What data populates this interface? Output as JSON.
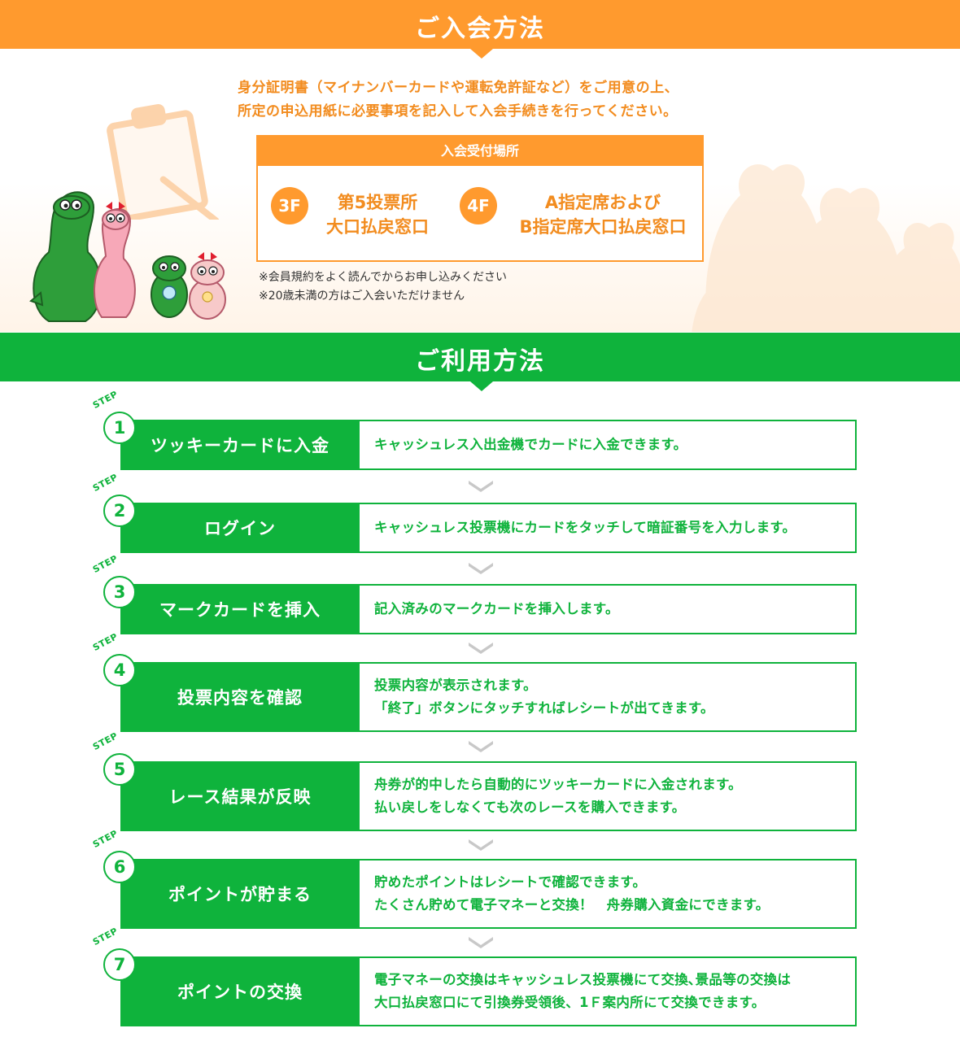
{
  "join": {
    "title": "ご入会方法",
    "intro_line1": "身分証明書（マイナンバーカードや運転免許証など）をご用意の上、",
    "intro_line2": "所定の申込用紙に必要事項を記入して入会手続きを行ってください。",
    "reception_title": "入会受付場所",
    "floors": [
      {
        "badge": "3F",
        "line1": "第5投票所",
        "line2": "大口払戻窓口"
      },
      {
        "badge": "4F",
        "line1": "A指定席および",
        "line2": "B指定席大口払戻窓口"
      }
    ],
    "notes": [
      "※会員規約をよく読んでからお申し込みください",
      "※20歳未満の方はご入会いただけません"
    ]
  },
  "usage": {
    "title": "ご利用方法",
    "step_word": "STEP",
    "steps": [
      {
        "num": "1",
        "label": "ツッキーカードに入金",
        "desc1": "キャッシュレス入出金機でカードに入金できます。",
        "desc2": ""
      },
      {
        "num": "2",
        "label": "ログイン",
        "desc1": "キャッシュレス投票機にカードをタッチして暗証番号を入力します。",
        "desc2": ""
      },
      {
        "num": "3",
        "label": "マークカードを挿入",
        "desc1": "記入済みのマークカードを挿入します。",
        "desc2": ""
      },
      {
        "num": "4",
        "label": "投票内容を確認",
        "desc1": "投票内容が表示されます。",
        "desc2": "「終了」ボタンにタッチすればレシートが出てきます。"
      },
      {
        "num": "5",
        "label": "レース結果が反映",
        "desc1": "舟券が的中したら自動的にツッキーカードに入金されます。",
        "desc2": "払い戻しをしなくても次のレースを購入できます。"
      },
      {
        "num": "6",
        "label": "ポイントが貯まる",
        "desc1": "貯めたポイントはレシートで確認できます。",
        "desc2": "たくさん貯めて電子マネーと交換！　舟券購入資金にできます。"
      },
      {
        "num": "7",
        "label": "ポイントの交換",
        "desc1": "電子マネーの交換はキャッシュレス投票機にて交換､景品等の交換は",
        "desc2": "大口払戻窓口にて引換券受領後、1Ｆ案内所にて交換できます。"
      }
    ]
  },
  "colors": {
    "orange": "#ff9a2e",
    "green": "#0fb33c"
  }
}
